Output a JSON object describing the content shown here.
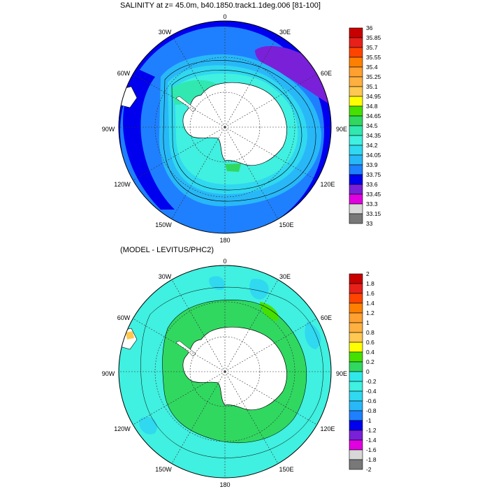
{
  "panels": [
    {
      "title": "SALINITY at z=  45.0m, b40.1850.track1.1deg.006 [81-100]",
      "lon_labels": {
        "n": "0",
        "ne": "30E",
        "e": "60E",
        "e2": "90E",
        "se": "120E",
        "s2": "150E",
        "s": "180",
        "sw2": "150W",
        "sw": "120W",
        "w2": "90W",
        "w": "60W",
        "nw": "30W"
      },
      "colorbar": {
        "labels": [
          "36",
          "35.85",
          "35.7",
          "35.55",
          "35.4",
          "35.25",
          "35.1",
          "34.95",
          "34.8",
          "34.65",
          "34.5",
          "34.35",
          "34.2",
          "34.05",
          "33.9",
          "33.75",
          "33.6",
          "33.45",
          "33.3",
          "33.15",
          "33"
        ],
        "colors": [
          "#c80000",
          "#e8201a",
          "#ff4400",
          "#ff8000",
          "#ffa030",
          "#ffb040",
          "#ffc850",
          "#ffff00",
          "#46e000",
          "#30d860",
          "#30e8b0",
          "#40f0e0",
          "#30d8f0",
          "#28b8f8",
          "#1e80ff",
          "#0000ee",
          "#7a20d8",
          "#e000e0",
          "#d8d8d8",
          "#787878"
        ]
      }
    },
    {
      "title": "(MODEL - LEVITUS/PHC2)",
      "lon_labels": {
        "n": "0",
        "ne": "30E",
        "e": "60E",
        "e2": "90E",
        "se": "120E",
        "s2": "150E",
        "s": "180",
        "sw2": "150W",
        "sw": "120W",
        "w2": "90W",
        "w": "60W",
        "nw": "30W"
      },
      "colorbar": {
        "labels": [
          "2",
          "1.8",
          "1.6",
          "1.4",
          "1.2",
          "1",
          "0.8",
          "0.6",
          "0.4",
          "0.2",
          "0",
          "-0.2",
          "-0.4",
          "-0.6",
          "-0.8",
          "-1",
          "-1.2",
          "-1.4",
          "-1.6",
          "-1.8",
          "-2"
        ],
        "colors": [
          "#c80000",
          "#e8201a",
          "#ff4400",
          "#ff8000",
          "#ffa030",
          "#ffb040",
          "#ffc850",
          "#ffff00",
          "#46e000",
          "#30d860",
          "#30e8e8",
          "#40f0e0",
          "#30d8f0",
          "#28b8f8",
          "#1e80ff",
          "#0000ee",
          "#7a20d8",
          "#e000e0",
          "#d8d8d8",
          "#787878"
        ]
      }
    }
  ]
}
